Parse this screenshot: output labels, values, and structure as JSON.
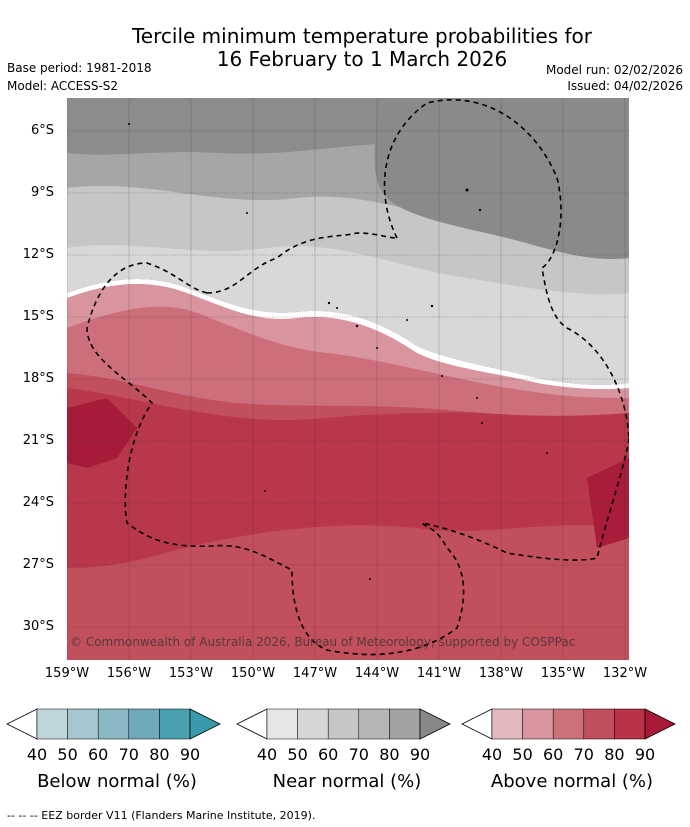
{
  "title": {
    "line1": "Tercile minimum temperature probabilities for",
    "line2": "16 February to 1 March 2026"
  },
  "meta": {
    "base_period": "Base period: 1981-2018",
    "model": "Model: ACCESS-S2",
    "model_run": "Model run: 02/02/2026",
    "issued": "Issued: 04/02/2026"
  },
  "map": {
    "copyright": "© Commonwealth of Australia 2026, Bureau of Meteorology, supported by COSPPac",
    "lat_labels": [
      "6°S",
      "9°S",
      "12°S",
      "15°S",
      "18°S",
      "21°S",
      "24°S",
      "27°S",
      "30°S"
    ],
    "lon_labels": [
      "159°W",
      "156°W",
      "153°W",
      "150°W",
      "147°W",
      "144°W",
      "141°W",
      "138°W",
      "135°W",
      "132°W"
    ]
  },
  "legends": [
    {
      "title": "Below normal (%)",
      "ticks": [
        "40",
        "50",
        "60",
        "70",
        "80",
        "90"
      ],
      "colors": [
        "#ffffff",
        "#bfd6dd",
        "#a6c7d0",
        "#8ab8c4",
        "#6eaab8",
        "#4a9fb0",
        "#3a9aac"
      ]
    },
    {
      "title": "Near normal (%)",
      "ticks": [
        "40",
        "50",
        "60",
        "70",
        "80",
        "90"
      ],
      "colors": [
        "#ffffff",
        "#e6e6e6",
        "#d6d6d6",
        "#c6c6c6",
        "#b6b6b6",
        "#a2a2a2",
        "#888888"
      ]
    },
    {
      "title": "Above normal (%)",
      "ticks": [
        "40",
        "50",
        "60",
        "70",
        "80",
        "90"
      ],
      "colors": [
        "#ffffff",
        "#e3b9bf",
        "#d8959e",
        "#cc707c",
        "#c0505e",
        "#b83347",
        "#a81a38"
      ]
    }
  ],
  "footer": "-- -- -- EEZ border V11 (Flanders Marine Institute, 2019)."
}
